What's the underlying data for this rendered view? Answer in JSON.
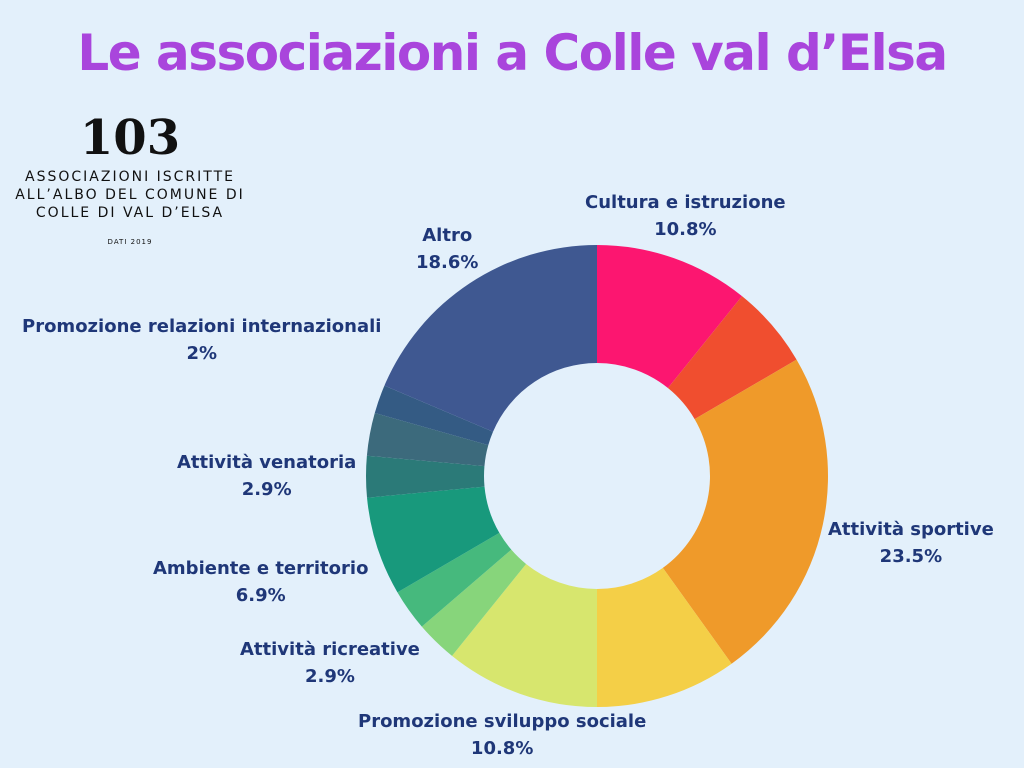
{
  "header": {
    "title": "Le associazioni a Colle val d’Elsa"
  },
  "stat": {
    "number": "103",
    "caption": "ASSOCIAZIONI ISCRITTE ALL’ALBO DEL COMUNE DI COLLE DI VAL D’ELSA",
    "source": "DATI 2019"
  },
  "chart_data": {
    "type": "pie",
    "title": "Le associazioni a Colle val d’Elsa",
    "unit": "%",
    "slices": [
      {
        "name": "Cultura e istruzione",
        "value": 10.8,
        "color": "#fc1670",
        "label": "10.8%"
      },
      {
        "name": "",
        "value": 5.8,
        "color": "#f04e2f",
        "label": ""
      },
      {
        "name": "Attività sportive",
        "value": 23.5,
        "color": "#ef9a2a",
        "label": "23.5%"
      },
      {
        "name": "",
        "value": 9.9,
        "color": "#f4cf47",
        "label": ""
      },
      {
        "name": "Promozione sviluppo sociale",
        "value": 10.8,
        "color": "#d7e66e",
        "label": "10.8%"
      },
      {
        "name": "Attività ricreative",
        "value": 2.9,
        "color": "#87d57b",
        "label": "2.9%"
      },
      {
        "name": "",
        "value": 2.9,
        "color": "#46b97d",
        "label": ""
      },
      {
        "name": "Ambiente e territorio",
        "value": 6.9,
        "color": "#18997c",
        "label": "6.9%"
      },
      {
        "name": "Attività venatoria",
        "value": 2.9,
        "color": "#2b7a78",
        "label": "2.9%"
      },
      {
        "name": "",
        "value": 3.0,
        "color": "#3c6a7c",
        "label": ""
      },
      {
        "name": "Promozione relazioni internazionali",
        "value": 2.0,
        "color": "#345b84",
        "label": "2%"
      },
      {
        "name": "Altro",
        "value": 18.6,
        "color": "#3f5891",
        "label": "18.6%"
      }
    ]
  }
}
